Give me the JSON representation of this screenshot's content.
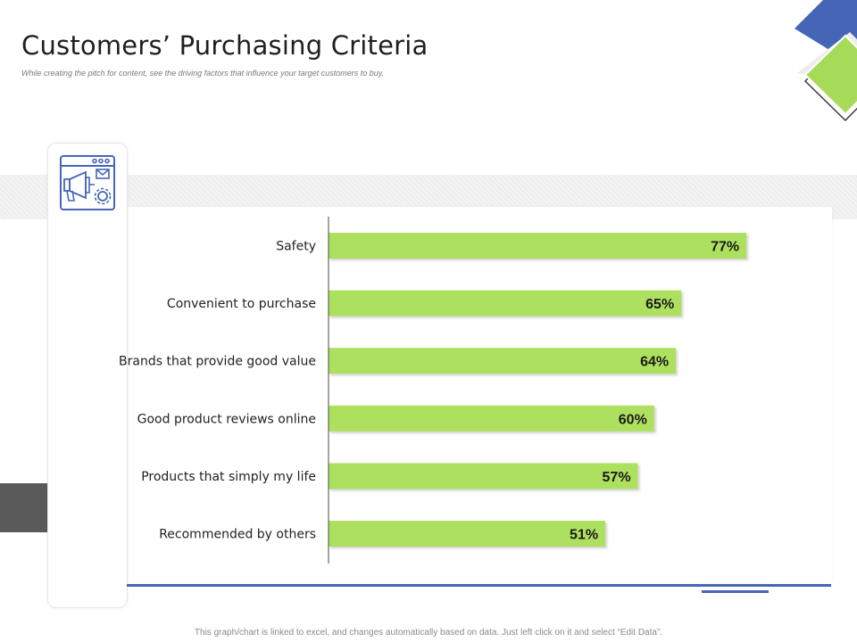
{
  "header": {
    "title": "Customers’ Purchasing Criteria",
    "subtitle": "While creating the pitch for content, see the driving factors that influence your target customers to buy."
  },
  "footer": {
    "note": "This graph/chart is linked to excel, and changes automatically based on data. Just left click on it and select “Edit Data”."
  },
  "icon": {
    "name": "megaphone-browser-icon"
  },
  "colors": {
    "bar": "#aee05e",
    "accent_blue": "#4565b7",
    "accent_green": "#a6db5a",
    "dark_gray": "#5a5a5a"
  },
  "chart_data": {
    "type": "bar",
    "orientation": "horizontal",
    "categories": [
      "Safety",
      "Convenient to purchase",
      "Brands that provide good value",
      "Good product reviews online",
      "Products that simply my life",
      "Recommended by others"
    ],
    "values": [
      77,
      65,
      64,
      60,
      57,
      51
    ],
    "value_labels": [
      "77%",
      "65%",
      "64%",
      "60%",
      "57%",
      "51%"
    ],
    "xlim": [
      0,
      100
    ],
    "grid": false,
    "legend": "none"
  }
}
